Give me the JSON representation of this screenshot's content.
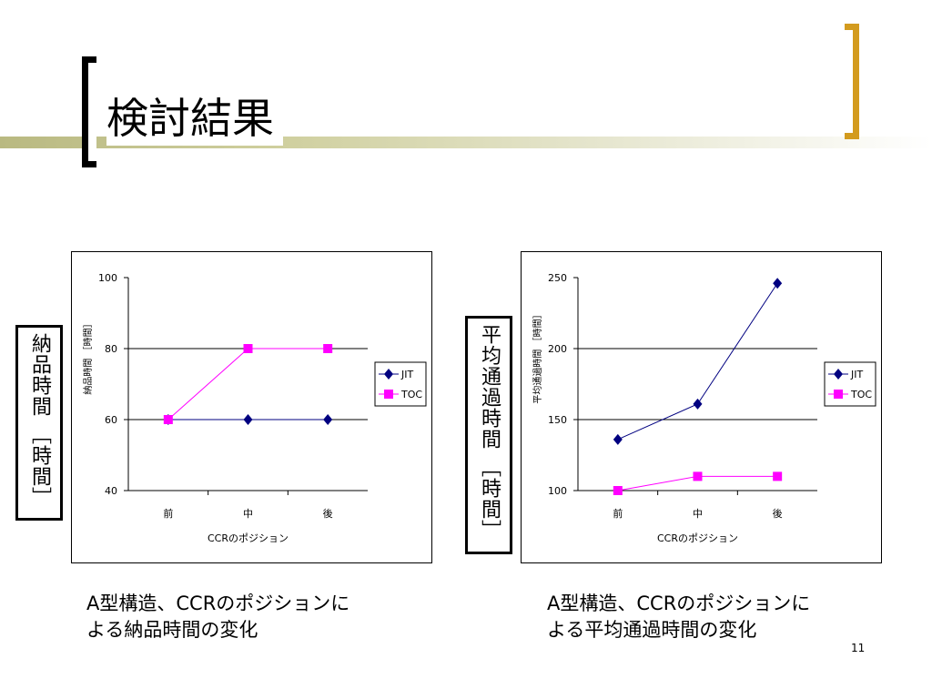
{
  "slide": {
    "title": "検討結果",
    "page_number": "11",
    "colors": {
      "title_band": "#b9b981",
      "left_bracket": "#000000",
      "right_bracket": "#d39b1e",
      "jit": "#000080",
      "toc": "#ff00ff"
    }
  },
  "side_labels": {
    "left": "納品時間 ［時間］",
    "right": "平均通過時間 ［時間］"
  },
  "captions": {
    "left": "A型構造、CCRのポジションに\nよる納品時間の変化",
    "right": "A型構造、CCRのポジションに\nよる平均通過時間の変化"
  },
  "chart_data": [
    {
      "type": "line",
      "categories": [
        "前",
        "中",
        "後"
      ],
      "series": [
        {
          "name": "JIT",
          "values": [
            60,
            60,
            60
          ],
          "color": "#000080",
          "marker": "diamond"
        },
        {
          "name": "TOC",
          "values": [
            60,
            80,
            80
          ],
          "color": "#ff00ff",
          "marker": "square"
        }
      ],
      "xlabel": "CCRのポジション",
      "ylabel": "納品時間 ［時間］",
      "ylim": [
        40,
        100
      ],
      "yticks": [
        40,
        60,
        80,
        100
      ],
      "grid": true,
      "legend": "right"
    },
    {
      "type": "line",
      "categories": [
        "前",
        "中",
        "後"
      ],
      "series": [
        {
          "name": "JIT",
          "values": [
            136,
            161,
            246
          ],
          "color": "#000080",
          "marker": "diamond"
        },
        {
          "name": "TOC",
          "values": [
            100,
            110,
            110
          ],
          "color": "#ff00ff",
          "marker": "square"
        }
      ],
      "xlabel": "CCRのポジション",
      "ylabel": "平均通過時間 ［時間］",
      "ylim": [
        100,
        250
      ],
      "yticks": [
        100,
        150,
        200,
        250
      ],
      "grid": true,
      "legend": "right"
    }
  ]
}
